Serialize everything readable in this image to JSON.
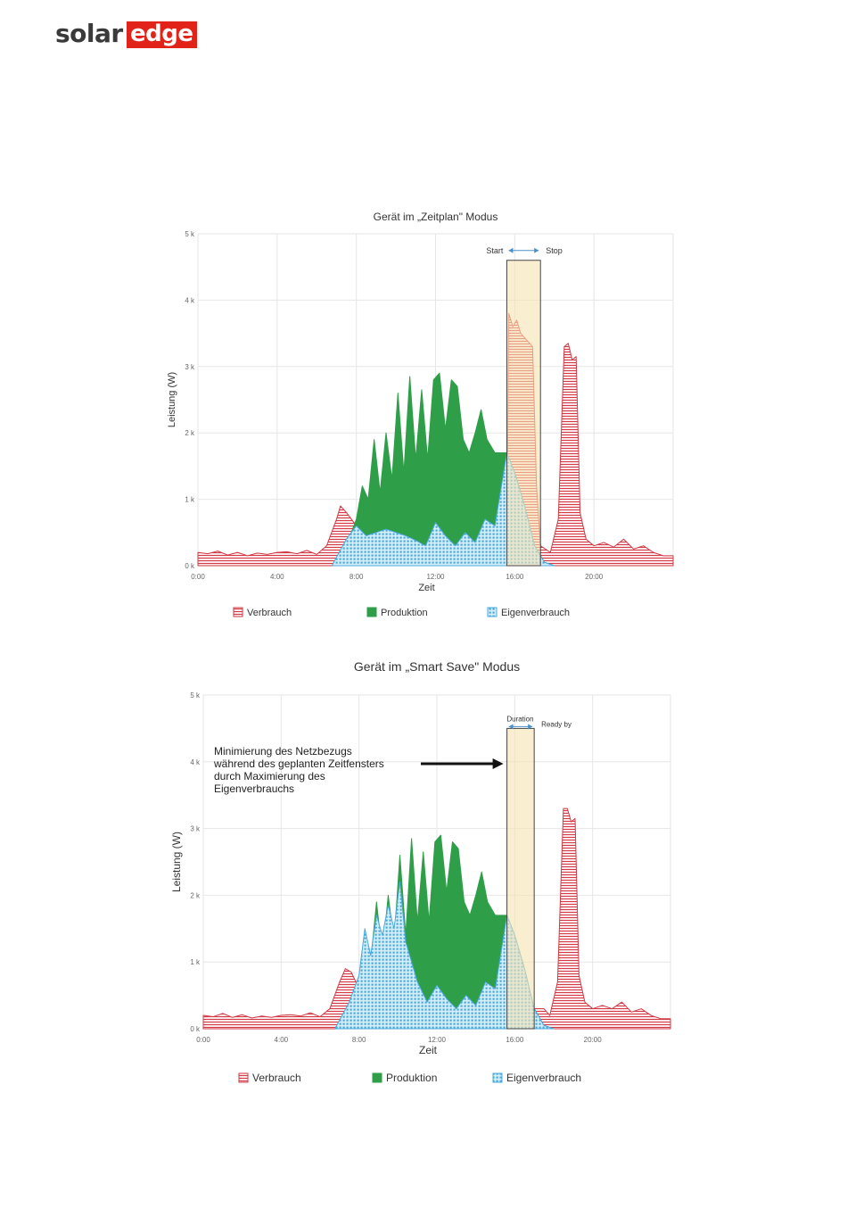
{
  "logo": {
    "part1": "solar",
    "part2": "edge"
  },
  "colors": {
    "verbrauch": "#d23a45",
    "produktion": "#2e9e48",
    "eigenverbrauch": "#4aa9dc",
    "window": "#f6e3b0",
    "grid": "#e6e6e6"
  },
  "chart_data": [
    {
      "type": "area",
      "title": "Gerät im „Zeitplan\" Modus",
      "xlabel": "Zeit",
      "ylabel": "Leistung (W)",
      "xlim": [
        0,
        24
      ],
      "ylim": [
        0,
        5000
      ],
      "x_ticks": [
        "0:00",
        "4:00",
        "8:00",
        "12:00",
        "16:00",
        "20:00"
      ],
      "y_ticks": [
        "0 k",
        "1 k",
        "2 k",
        "3 k",
        "4 k",
        "5 k"
      ],
      "legend": [
        "Verbrauch",
        "Produktion",
        "Eigenverbrauch"
      ],
      "legend_position": "bottom",
      "grid": true,
      "window": {
        "start": 15.6,
        "end": 17.3,
        "top": 4600
      },
      "annotations": {
        "left": "Start",
        "right": "Stop"
      },
      "series": [
        {
          "name": "Verbrauch",
          "points": [
            [
              0,
              200
            ],
            [
              0.5,
              180
            ],
            [
              1,
              220
            ],
            [
              1.5,
              160
            ],
            [
              2,
              200
            ],
            [
              2.5,
              150
            ],
            [
              3,
              190
            ],
            [
              3.5,
              170
            ],
            [
              4,
              200
            ],
            [
              4.5,
              210
            ],
            [
              5,
              180
            ],
            [
              5.5,
              230
            ],
            [
              6,
              170
            ],
            [
              6.5,
              300
            ],
            [
              7,
              700
            ],
            [
              7.2,
              900
            ],
            [
              7.5,
              800
            ],
            [
              8,
              600
            ],
            [
              8.5,
              300
            ],
            [
              9,
              250
            ],
            [
              15.6,
              300
            ],
            [
              15.7,
              3800
            ],
            [
              15.9,
              3600
            ],
            [
              16.1,
              3700
            ],
            [
              16.3,
              3500
            ],
            [
              16.6,
              3400
            ],
            [
              16.9,
              3300
            ],
            [
              17.1,
              1200
            ],
            [
              17.3,
              300
            ],
            [
              17.8,
              200
            ],
            [
              18.2,
              700
            ],
            [
              18.5,
              3300
            ],
            [
              18.7,
              3350
            ],
            [
              18.9,
              3100
            ],
            [
              19.1,
              3150
            ],
            [
              19.3,
              800
            ],
            [
              19.6,
              400
            ],
            [
              20,
              300
            ],
            [
              20.5,
              350
            ],
            [
              21,
              280
            ],
            [
              21.5,
              400
            ],
            [
              22,
              250
            ],
            [
              22.5,
              300
            ],
            [
              23,
              200
            ],
            [
              23.5,
              150
            ],
            [
              24,
              150
            ]
          ]
        },
        {
          "name": "Produktion",
          "points": [
            [
              6.8,
              20
            ],
            [
              7.5,
              300
            ],
            [
              8,
              700
            ],
            [
              8.3,
              1200
            ],
            [
              8.6,
              1000
            ],
            [
              8.9,
              1900
            ],
            [
              9.2,
              1100
            ],
            [
              9.5,
              2000
            ],
            [
              9.8,
              1300
            ],
            [
              10.1,
              2600
            ],
            [
              10.4,
              1400
            ],
            [
              10.7,
              2850
            ],
            [
              11,
              1600
            ],
            [
              11.3,
              2650
            ],
            [
              11.6,
              1600
            ],
            [
              11.9,
              2800
            ],
            [
              12.2,
              2900
            ],
            [
              12.5,
              2050
            ],
            [
              12.8,
              2800
            ],
            [
              13.1,
              2700
            ],
            [
              13.4,
              1900
            ],
            [
              13.7,
              1700
            ],
            [
              14,
              2000
            ],
            [
              14.3,
              2350
            ],
            [
              14.6,
              1900
            ],
            [
              15,
              1700
            ],
            [
              15.6,
              1700
            ],
            [
              16,
              1400
            ],
            [
              16.5,
              900
            ],
            [
              17,
              300
            ],
            [
              17.5,
              50
            ],
            [
              18,
              0
            ]
          ]
        },
        {
          "name": "Eigenverbrauch",
          "points": [
            [
              6.8,
              20
            ],
            [
              7.5,
              400
            ],
            [
              8,
              600
            ],
            [
              8.5,
              450
            ],
            [
              9,
              500
            ],
            [
              9.5,
              550
            ],
            [
              10,
              500
            ],
            [
              10.5,
              450
            ],
            [
              11,
              380
            ],
            [
              11.5,
              300
            ],
            [
              12,
              650
            ],
            [
              12.5,
              450
            ],
            [
              13,
              300
            ],
            [
              13.5,
              500
            ],
            [
              14,
              350
            ],
            [
              14.5,
              700
            ],
            [
              15,
              600
            ],
            [
              15.6,
              1700
            ],
            [
              16,
              1400
            ],
            [
              16.5,
              900
            ],
            [
              17,
              300
            ],
            [
              17.5,
              50
            ],
            [
              18,
              0
            ]
          ]
        }
      ]
    },
    {
      "type": "area",
      "title": "Gerät im „Smart Save\" Modus",
      "xlabel": "Zeit",
      "ylabel": "Leistung (W)",
      "xlim": [
        0,
        24
      ],
      "ylim": [
        0,
        5000
      ],
      "x_ticks": [
        "0:00",
        "4:00",
        "8:00",
        "12:00",
        "16:00",
        "20:00"
      ],
      "y_ticks": [
        "0 k",
        "1 k",
        "2 k",
        "3 k",
        "4 k",
        "5 k"
      ],
      "legend": [
        "Verbrauch",
        "Produktion",
        "Eigenverbrauch"
      ],
      "legend_position": "bottom",
      "grid": true,
      "window": {
        "start": 15.6,
        "end": 17.0,
        "top": 4500
      },
      "annotations": {
        "left": "Duration",
        "right": "Ready by",
        "note": [
          "Minimierung des Netzbezugs",
          "während des geplanten Zeitfensters",
          "durch Maximierung des",
          "Eigenverbrauchs"
        ]
      },
      "series": [
        {
          "name": "Verbrauch",
          "points": [
            [
              0,
              200
            ],
            [
              0.5,
              180
            ],
            [
              1,
              230
            ],
            [
              1.5,
              170
            ],
            [
              2,
              210
            ],
            [
              2.5,
              160
            ],
            [
              3,
              190
            ],
            [
              3.5,
              170
            ],
            [
              4,
              200
            ],
            [
              4.5,
              210
            ],
            [
              5,
              190
            ],
            [
              5.5,
              240
            ],
            [
              6,
              180
            ],
            [
              6.5,
              300
            ],
            [
              7,
              700
            ],
            [
              7.3,
              900
            ],
            [
              7.6,
              850
            ],
            [
              8,
              600
            ],
            [
              8.5,
              300
            ],
            [
              9,
              250
            ],
            [
              15.6,
              300
            ],
            [
              16.3,
              300
            ],
            [
              17.1,
              300
            ],
            [
              17.5,
              300
            ],
            [
              17.8,
              200
            ],
            [
              18.2,
              700
            ],
            [
              18.5,
              3300
            ],
            [
              18.7,
              3300
            ],
            [
              18.9,
              3100
            ],
            [
              19.1,
              3150
            ],
            [
              19.3,
              800
            ],
            [
              19.6,
              400
            ],
            [
              20,
              300
            ],
            [
              20.5,
              350
            ],
            [
              21,
              300
            ],
            [
              21.5,
              400
            ],
            [
              22,
              250
            ],
            [
              22.5,
              300
            ],
            [
              23,
              200
            ],
            [
              23.5,
              150
            ],
            [
              24,
              150
            ]
          ]
        },
        {
          "name": "Produktion",
          "points": [
            [
              6.8,
              20
            ],
            [
              7.5,
              300
            ],
            [
              8,
              700
            ],
            [
              8.3,
              1200
            ],
            [
              8.6,
              1000
            ],
            [
              8.9,
              1900
            ],
            [
              9.2,
              1100
            ],
            [
              9.5,
              2000
            ],
            [
              9.8,
              1300
            ],
            [
              10.1,
              2600
            ],
            [
              10.4,
              1400
            ],
            [
              10.7,
              2850
            ],
            [
              11,
              1600
            ],
            [
              11.3,
              2650
            ],
            [
              11.6,
              1600
            ],
            [
              11.9,
              2800
            ],
            [
              12.2,
              2900
            ],
            [
              12.5,
              2050
            ],
            [
              12.8,
              2800
            ],
            [
              13.1,
              2700
            ],
            [
              13.4,
              1900
            ],
            [
              13.7,
              1700
            ],
            [
              14,
              2000
            ],
            [
              14.3,
              2350
            ],
            [
              14.6,
              1900
            ],
            [
              15,
              1700
            ],
            [
              15.6,
              1700
            ],
            [
              16,
              1400
            ],
            [
              16.5,
              900
            ],
            [
              17,
              300
            ],
            [
              17.5,
              50
            ],
            [
              18,
              0
            ]
          ]
        },
        {
          "name": "Eigenverbrauch",
          "points": [
            [
              6.8,
              20
            ],
            [
              7.5,
              400
            ],
            [
              8,
              800
            ],
            [
              8.3,
              1500
            ],
            [
              8.6,
              1100
            ],
            [
              8.9,
              1700
            ],
            [
              9.2,
              1400
            ],
            [
              9.5,
              1850
            ],
            [
              9.8,
              1500
            ],
            [
              10.1,
              2200
            ],
            [
              10.4,
              1300
            ],
            [
              10.7,
              1000
            ],
            [
              11,
              700
            ],
            [
              11.5,
              400
            ],
            [
              12,
              650
            ],
            [
              12.5,
              450
            ],
            [
              13,
              300
            ],
            [
              13.5,
              500
            ],
            [
              14,
              350
            ],
            [
              14.5,
              700
            ],
            [
              15,
              600
            ],
            [
              15.6,
              1700
            ],
            [
              16,
              1400
            ],
            [
              16.5,
              900
            ],
            [
              17,
              300
            ],
            [
              17.5,
              50
            ],
            [
              18,
              0
            ]
          ]
        }
      ]
    }
  ]
}
